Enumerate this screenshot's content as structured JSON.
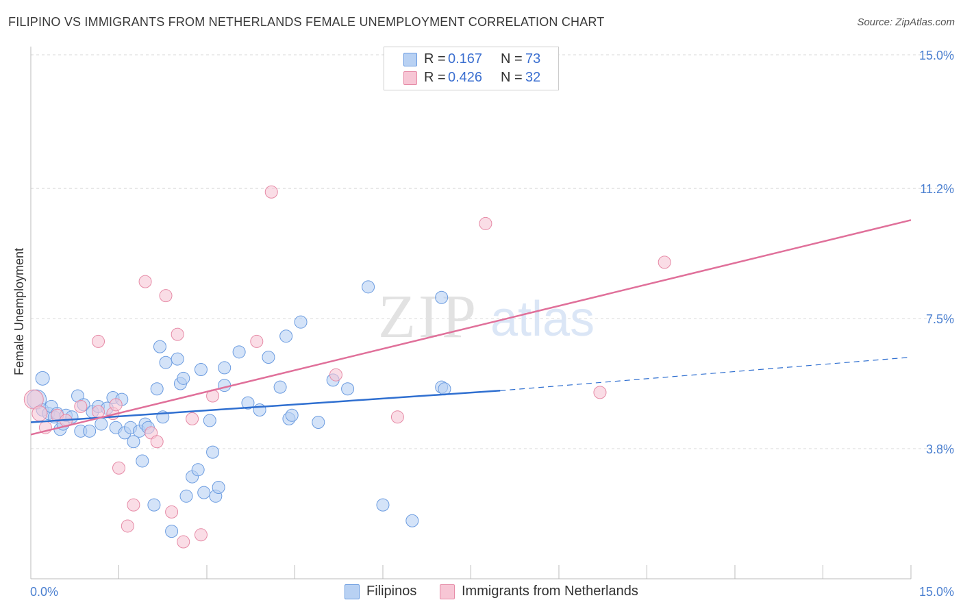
{
  "title": "FILIPINO VS IMMIGRANTS FROM NETHERLANDS FEMALE UNEMPLOYMENT CORRELATION CHART",
  "source": "Source: ZipAtlas.com",
  "watermark": {
    "zip": "ZIP",
    "atlas": "atlas"
  },
  "colors": {
    "blue_fill": "#b8d1f3",
    "blue_stroke": "#6a9be0",
    "blue_line": "#2f6fd0",
    "pink_fill": "#f7c6d5",
    "pink_stroke": "#e68aa6",
    "pink_line": "#e0709a",
    "tick": "#4a7fd0",
    "grid": "#d8d8d8"
  },
  "legend": {
    "rows": [
      {
        "r_label": "R =",
        "r_value": "0.167",
        "n_label": "N =",
        "n_value": "73"
      },
      {
        "r_label": "R =",
        "r_value": "0.426",
        "n_label": "N =",
        "n_value": "32"
      }
    ]
  },
  "bottom_legend": [
    "Filipinos",
    "Immigrants from Netherlands"
  ],
  "chart_data": {
    "type": "scatter",
    "title": "FILIPINO VS IMMIGRANTS FROM NETHERLANDS FEMALE UNEMPLOYMENT CORRELATION CHART",
    "xlabel": "",
    "ylabel": "Female Unemployment",
    "xlim": [
      0,
      15
    ],
    "ylim": [
      0,
      15.5
    ],
    "x_tick_labels": [
      {
        "value": 0,
        "label": "0.0%"
      },
      {
        "value": 15,
        "label": "15.0%"
      }
    ],
    "y_tick_labels": [
      {
        "value": 3.8,
        "label": "3.8%"
      },
      {
        "value": 7.5,
        "label": "7.5%"
      },
      {
        "value": 11.2,
        "label": "11.2%"
      },
      {
        "value": 15.0,
        "label": "15.0%"
      }
    ],
    "series": [
      {
        "name": "Filipinos",
        "r": 0.167,
        "n": 73,
        "trend": {
          "x0": 0,
          "y0": 4.55,
          "x1": 8.0,
          "y1": 5.45,
          "dash_x1": 15,
          "dash_y1": 6.4
        },
        "points": [
          [
            0.1,
            5.2,
            14
          ],
          [
            0.2,
            5.8,
            10
          ],
          [
            0.2,
            4.9,
            9
          ],
          [
            0.3,
            4.8,
            9
          ],
          [
            0.35,
            5.0,
            9
          ],
          [
            0.4,
            4.7,
            9
          ],
          [
            0.45,
            4.8,
            9
          ],
          [
            0.5,
            4.35,
            9
          ],
          [
            0.55,
            4.5,
            9
          ],
          [
            0.6,
            4.75,
            9
          ],
          [
            0.7,
            4.7,
            9
          ],
          [
            0.8,
            5.3,
            9
          ],
          [
            0.85,
            4.3,
            9
          ],
          [
            0.9,
            5.05,
            9
          ],
          [
            1.0,
            4.3,
            9
          ],
          [
            1.05,
            4.85,
            9
          ],
          [
            1.15,
            5.0,
            9
          ],
          [
            1.2,
            4.5,
            9
          ],
          [
            1.3,
            4.95,
            9
          ],
          [
            1.4,
            5.25,
            9
          ],
          [
            1.45,
            4.4,
            9
          ],
          [
            1.55,
            5.2,
            9
          ],
          [
            1.6,
            4.25,
            9
          ],
          [
            1.7,
            4.4,
            9
          ],
          [
            1.75,
            4.0,
            9
          ],
          [
            1.85,
            4.3,
            9
          ],
          [
            1.9,
            3.45,
            9
          ],
          [
            1.95,
            4.5,
            9
          ],
          [
            2.0,
            4.4,
            9
          ],
          [
            2.1,
            2.2,
            9
          ],
          [
            2.15,
            5.5,
            9
          ],
          [
            2.2,
            6.7,
            9
          ],
          [
            2.25,
            4.7,
            9
          ],
          [
            2.3,
            6.25,
            9
          ],
          [
            2.4,
            1.45,
            9
          ],
          [
            2.5,
            6.35,
            9
          ],
          [
            2.55,
            5.65,
            9
          ],
          [
            2.6,
            5.8,
            9
          ],
          [
            2.65,
            2.45,
            9
          ],
          [
            2.75,
            3.0,
            9
          ],
          [
            2.85,
            3.2,
            9
          ],
          [
            2.9,
            6.05,
            9
          ],
          [
            2.95,
            2.55,
            9
          ],
          [
            3.05,
            4.6,
            9
          ],
          [
            3.1,
            3.7,
            9
          ],
          [
            3.15,
            2.45,
            9
          ],
          [
            3.2,
            2.7,
            9
          ],
          [
            3.3,
            6.1,
            9
          ],
          [
            3.3,
            5.6,
            9
          ],
          [
            3.55,
            6.55,
            9
          ],
          [
            3.7,
            5.1,
            9
          ],
          [
            3.9,
            4.9,
            9
          ],
          [
            4.05,
            6.4,
            9
          ],
          [
            4.25,
            5.55,
            9
          ],
          [
            4.35,
            7.0,
            9
          ],
          [
            4.4,
            4.65,
            9
          ],
          [
            4.45,
            4.75,
            9
          ],
          [
            4.6,
            7.4,
            9
          ],
          [
            4.9,
            4.55,
            9
          ],
          [
            5.15,
            5.75,
            9
          ],
          [
            5.4,
            5.5,
            9
          ],
          [
            5.75,
            8.4,
            9
          ],
          [
            6.0,
            2.2,
            9
          ],
          [
            6.5,
            1.75,
            9
          ],
          [
            7.0,
            5.55,
            9
          ],
          [
            7.05,
            5.5,
            9
          ],
          [
            7.0,
            8.1,
            9
          ]
        ]
      },
      {
        "name": "Immigrants from Netherlands",
        "r": 0.426,
        "n": 32,
        "trend": {
          "x0": 0,
          "y0": 4.2,
          "x1": 15,
          "y1": 10.3
        },
        "points": [
          [
            0.05,
            5.2,
            14
          ],
          [
            0.15,
            4.8,
            11
          ],
          [
            0.25,
            4.4,
            9
          ],
          [
            0.45,
            4.75,
            9
          ],
          [
            0.6,
            4.6,
            9
          ],
          [
            0.85,
            5.0,
            9
          ],
          [
            1.15,
            4.85,
            9
          ],
          [
            1.15,
            6.85,
            9
          ],
          [
            1.4,
            4.8,
            9
          ],
          [
            1.45,
            5.05,
            9
          ],
          [
            1.5,
            3.25,
            9
          ],
          [
            1.65,
            1.6,
            9
          ],
          [
            1.75,
            2.2,
            9
          ],
          [
            1.95,
            8.55,
            9
          ],
          [
            2.05,
            4.25,
            9
          ],
          [
            2.15,
            4.0,
            9
          ],
          [
            2.3,
            8.15,
            9
          ],
          [
            2.4,
            2.0,
            9
          ],
          [
            2.5,
            7.05,
            9
          ],
          [
            2.6,
            1.15,
            9
          ],
          [
            2.75,
            4.65,
            9
          ],
          [
            2.9,
            1.35,
            9
          ],
          [
            3.1,
            5.3,
            9
          ],
          [
            3.85,
            6.85,
            9
          ],
          [
            4.1,
            11.1,
            9
          ],
          [
            5.2,
            5.9,
            9
          ],
          [
            6.25,
            4.7,
            9
          ],
          [
            7.75,
            10.2,
            9
          ],
          [
            9.7,
            5.4,
            9
          ],
          [
            10.8,
            9.1,
            9
          ]
        ]
      }
    ]
  }
}
